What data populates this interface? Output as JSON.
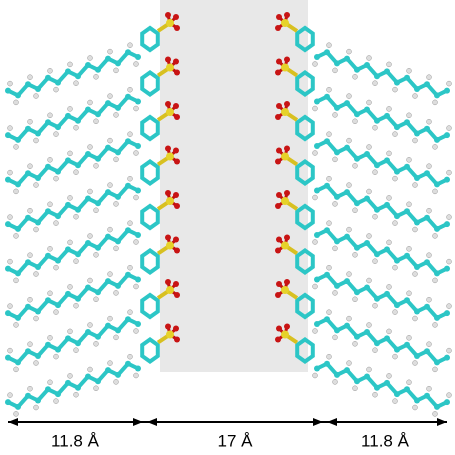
{
  "dimensions": [
    {
      "label": "11.8 Å"
    },
    {
      "label": "17 Å"
    },
    {
      "label": "11.8 Å"
    }
  ]
}
